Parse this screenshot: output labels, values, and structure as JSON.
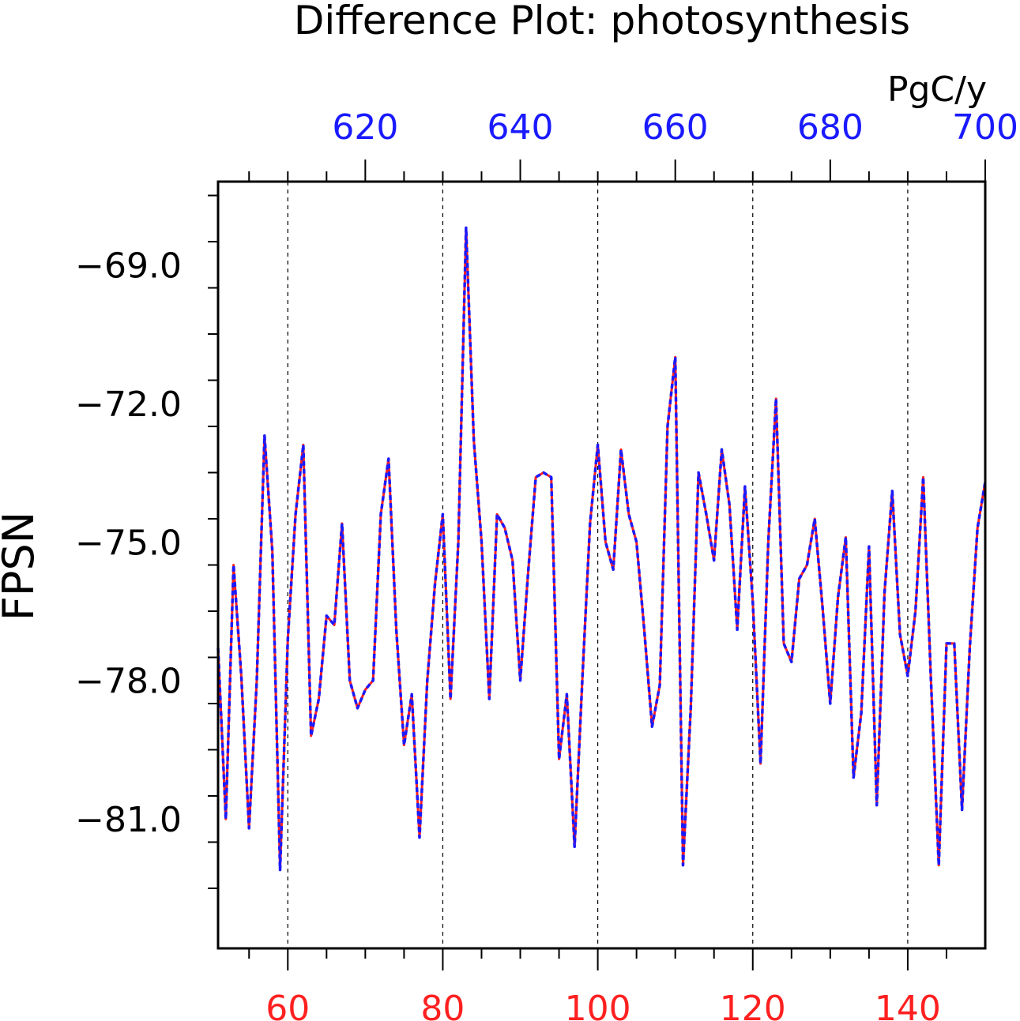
{
  "chart_data": {
    "type": "line",
    "title": "Difference Plot: photosynthesis",
    "ylabel": "FPSN",
    "units": "PgC/y",
    "xlim_bottom": [
      51,
      150
    ],
    "xlim_top": [
      601,
      700
    ],
    "ylim": [
      -83.8,
      -67.2
    ],
    "bottom_ticks": [
      "60",
      "80",
      "100",
      "120",
      "140"
    ],
    "top_ticks": [
      "620",
      "640",
      "660",
      "680",
      "700"
    ],
    "y_ticks": [
      "-69.0",
      "-72.0",
      "-75.0",
      "-78.0",
      "-81.0"
    ],
    "grid": "vertical dashed at 60, 80, 100, 120, 140",
    "colors": {
      "series_a": "#ff2020",
      "series_b": "#1a1aff",
      "bottom_axis": "#ff2020",
      "top_axis": "#1a1aff",
      "frame": "#000000"
    },
    "x": [
      51,
      52,
      53,
      54,
      55,
      56,
      57,
      58,
      59,
      60,
      61,
      62,
      63,
      64,
      65,
      66,
      67,
      68,
      69,
      70,
      71,
      72,
      73,
      74,
      75,
      76,
      77,
      78,
      79,
      80,
      81,
      82,
      83,
      84,
      85,
      86,
      87,
      88,
      89,
      90,
      91,
      92,
      93,
      94,
      95,
      96,
      97,
      98,
      99,
      100,
      101,
      102,
      103,
      104,
      105,
      106,
      107,
      108,
      109,
      110,
      111,
      112,
      113,
      114,
      115,
      116,
      117,
      118,
      119,
      120,
      121,
      122,
      123,
      124,
      125,
      126,
      127,
      128,
      129,
      130,
      131,
      132,
      133,
      134,
      135,
      136,
      137,
      138,
      139,
      140,
      141,
      142,
      143,
      144,
      145,
      146,
      147,
      148,
      149,
      150
    ],
    "series": [
      {
        "values": [
          -77.3,
          -81.0,
          -75.5,
          -77.9,
          -81.2,
          -78.0,
          -72.7,
          -75.2,
          -82.1,
          -77.1,
          -74.4,
          -72.9,
          -79.2,
          -78.4,
          -76.6,
          -76.8,
          -74.6,
          -78.0,
          -78.6,
          -78.2,
          -78.0,
          -74.4,
          -73.2,
          -76.9,
          -79.4,
          -78.3,
          -81.4,
          -78.0,
          -75.9,
          -74.4,
          -78.4,
          -75.0,
          -68.2,
          -72.8,
          -75.0,
          -78.4,
          -74.4,
          -74.7,
          -75.4,
          -78.0,
          -75.7,
          -73.6,
          -73.5,
          -73.6,
          -79.7,
          -78.3,
          -81.6,
          -78.0,
          -74.6,
          -72.9,
          -75.0,
          -75.6,
          -73.0,
          -74.4,
          -75.0,
          -76.9,
          -79.0,
          -78.1,
          -72.5,
          -71.0,
          -82.0,
          -78.6,
          -73.5,
          -74.4,
          -75.4,
          -73.0,
          -74.2,
          -76.9,
          -73.8,
          -76.3,
          -79.8,
          -75.0,
          -71.9,
          -77.2,
          -77.6,
          -75.8,
          -75.5,
          -74.5,
          -76.4,
          -78.5,
          -76.2,
          -74.9,
          -80.1,
          -78.7,
          -75.1,
          -80.7,
          -76.1,
          -73.9,
          -77.0,
          -77.9,
          -76.5,
          -73.6,
          -78.0,
          -82.0,
          -77.2,
          -77.2,
          -80.8,
          -77.3,
          -74.7,
          -73.7
        ]
      },
      {
        "values": [
          -77.3,
          -81.0,
          -75.5,
          -77.9,
          -81.2,
          -78.0,
          -72.7,
          -75.2,
          -82.1,
          -77.1,
          -74.4,
          -72.9,
          -79.2,
          -78.4,
          -76.6,
          -76.8,
          -74.6,
          -78.0,
          -78.6,
          -78.2,
          -78.0,
          -74.4,
          -73.2,
          -76.9,
          -79.4,
          -78.3,
          -81.4,
          -78.0,
          -75.9,
          -74.4,
          -78.4,
          -75.0,
          -68.2,
          -72.8,
          -75.0,
          -78.4,
          -74.4,
          -74.7,
          -75.4,
          -78.0,
          -75.7,
          -73.6,
          -73.5,
          -73.6,
          -79.7,
          -78.3,
          -81.6,
          -78.0,
          -74.6,
          -72.9,
          -75.0,
          -75.6,
          -73.0,
          -74.4,
          -75.0,
          -76.9,
          -79.0,
          -78.1,
          -72.5,
          -71.0,
          -82.0,
          -78.6,
          -73.5,
          -74.4,
          -75.4,
          -73.0,
          -74.2,
          -76.9,
          -73.8,
          -76.3,
          -79.8,
          -75.0,
          -71.9,
          -77.2,
          -77.6,
          -75.8,
          -75.5,
          -74.5,
          -76.4,
          -78.5,
          -76.2,
          -74.9,
          -80.1,
          -78.7,
          -75.1,
          -80.7,
          -76.1,
          -73.9,
          -77.0,
          -77.9,
          -76.5,
          -73.6,
          -78.0,
          -82.0,
          -77.2,
          -77.2,
          -80.8,
          -77.3,
          -74.7,
          -73.7
        ]
      }
    ]
  }
}
